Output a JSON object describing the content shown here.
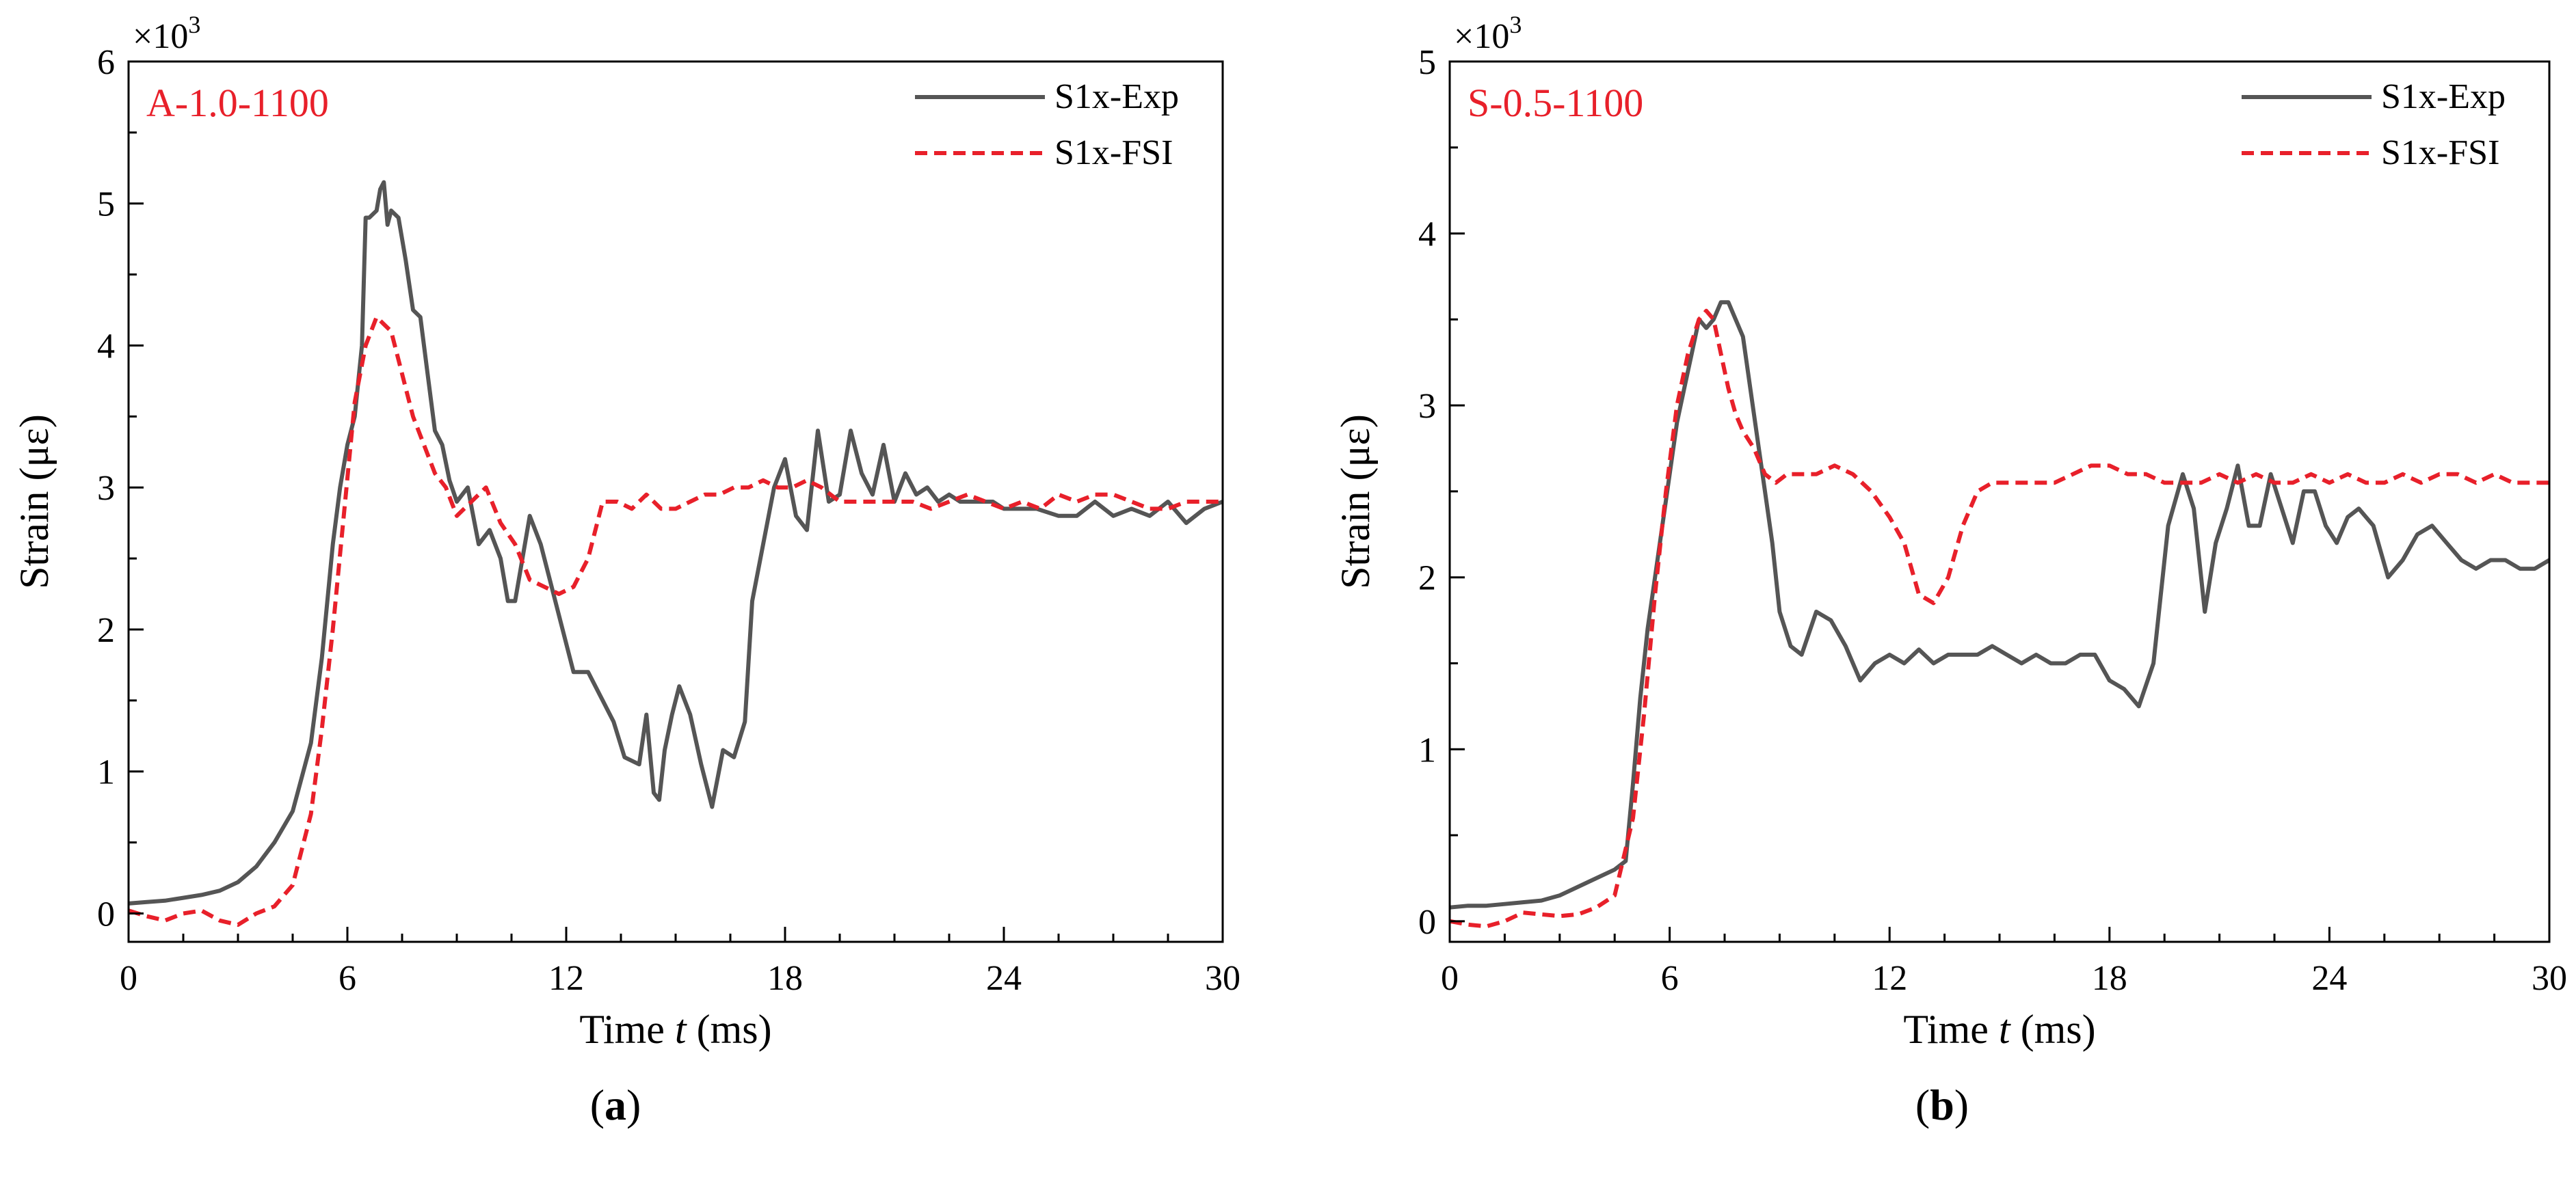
{
  "chart_data": [
    {
      "type": "line",
      "panel_label": "a",
      "annotation": "A-1.0-1100",
      "annotation_color": "#e8202a",
      "xlabel_prefix": "Time ",
      "xlabel_var": "t",
      "xlabel_suffix": " (ms)",
      "ylabel": "Strain (με)",
      "y_multiplier": "×10",
      "y_multiplier_exp": "3",
      "xlim": [
        0,
        30
      ],
      "ylim": [
        -0.2,
        6
      ],
      "xticks": [
        0,
        6,
        12,
        18,
        24,
        30
      ],
      "xtick_labels": [
        "0",
        "6",
        "12",
        "18",
        "24",
        "30"
      ],
      "yticks": [
        0,
        1,
        2,
        3,
        4,
        5,
        6
      ],
      "ytick_labels": [
        "0",
        "1",
        "2",
        "3",
        "4",
        "5",
        "6"
      ],
      "legend_position": "top-right",
      "series": [
        {
          "name": "S1x-Exp",
          "color": "#555555",
          "dash": "solid",
          "x": [
            0,
            0.5,
            1,
            1.5,
            2,
            2.5,
            3,
            3.5,
            4,
            4.5,
            5,
            5.3,
            5.6,
            5.8,
            6,
            6.2,
            6.4,
            6.5,
            6.6,
            6.8,
            6.9,
            7,
            7.1,
            7.2,
            7.4,
            7.6,
            7.8,
            8,
            8.2,
            8.4,
            8.6,
            8.8,
            9,
            9.3,
            9.6,
            9.9,
            10.2,
            10.4,
            10.6,
            11,
            11.3,
            11.6,
            11.9,
            12.2,
            12.6,
            13,
            13.3,
            13.6,
            14,
            14.2,
            14.4,
            14.55,
            14.7,
            14.9,
            15.1,
            15.4,
            15.7,
            16,
            16.3,
            16.6,
            16.9,
            17.1,
            17.4,
            17.7,
            18,
            18.3,
            18.6,
            18.9,
            19.2,
            19.5,
            19.8,
            20.1,
            20.4,
            20.7,
            21,
            21.3,
            21.6,
            21.9,
            22.2,
            22.5,
            22.8,
            23.1,
            23.4,
            23.7,
            24,
            24.3,
            24.6,
            24.9,
            25.5,
            26,
            26.5,
            27,
            27.5,
            28,
            28.5,
            29,
            29.5,
            30
          ],
          "y": [
            0.07,
            0.08,
            0.09,
            0.11,
            0.13,
            0.16,
            0.22,
            0.33,
            0.5,
            0.72,
            1.2,
            1.8,
            2.6,
            3.0,
            3.3,
            3.5,
            4.0,
            4.9,
            4.9,
            4.95,
            5.1,
            5.15,
            4.85,
            4.95,
            4.9,
            4.6,
            4.25,
            4.2,
            3.8,
            3.4,
            3.3,
            3.05,
            2.9,
            3.0,
            2.6,
            2.7,
            2.5,
            2.2,
            2.2,
            2.8,
            2.6,
            2.3,
            2.0,
            1.7,
            1.7,
            1.5,
            1.35,
            1.1,
            1.05,
            1.4,
            0.85,
            0.8,
            1.15,
            1.4,
            1.6,
            1.4,
            1.05,
            0.75,
            1.15,
            1.1,
            1.35,
            2.2,
            2.6,
            3.0,
            3.2,
            2.8,
            2.7,
            3.4,
            2.9,
            2.95,
            3.4,
            3.1,
            2.95,
            3.3,
            2.9,
            3.1,
            2.95,
            3.0,
            2.9,
            2.95,
            2.9,
            2.9,
            2.9,
            2.9,
            2.85,
            2.85,
            2.85,
            2.85,
            2.8,
            2.8,
            2.9,
            2.8,
            2.85,
            2.8,
            2.9,
            2.75,
            2.85,
            2.9
          ]
        },
        {
          "name": "S1x-FSI",
          "color": "#e8202a",
          "dash": "dashed",
          "x": [
            0,
            0.5,
            1,
            1.5,
            2,
            2.5,
            3,
            3.5,
            4,
            4.5,
            5,
            5.3,
            5.6,
            5.9,
            6.2,
            6.5,
            6.8,
            7,
            7.2,
            7.4,
            7.6,
            7.8,
            8.1,
            8.4,
            8.7,
            9,
            9.4,
            9.8,
            10.2,
            10.6,
            11,
            11.4,
            11.8,
            12.2,
            12.6,
            13,
            13.4,
            13.8,
            14.2,
            14.6,
            15,
            15.4,
            15.8,
            16.2,
            16.6,
            17,
            17.4,
            17.8,
            18.2,
            18.6,
            19,
            19.5,
            20,
            20.5,
            21,
            21.5,
            22,
            22.5,
            23,
            23.5,
            24,
            24.5,
            25,
            25.5,
            26,
            26.5,
            27,
            27.5,
            28,
            28.5,
            29,
            29.5,
            30
          ],
          "y": [
            0.02,
            -0.02,
            -0.05,
            0.0,
            0.02,
            -0.05,
            -0.08,
            0.0,
            0.05,
            0.2,
            0.7,
            1.3,
            2.0,
            2.8,
            3.6,
            4.0,
            4.2,
            4.15,
            4.1,
            3.9,
            3.7,
            3.5,
            3.3,
            3.1,
            3.0,
            2.8,
            2.9,
            3.0,
            2.75,
            2.6,
            2.35,
            2.3,
            2.25,
            2.3,
            2.5,
            2.9,
            2.9,
            2.85,
            2.95,
            2.85,
            2.85,
            2.9,
            2.95,
            2.95,
            3.0,
            3.0,
            3.05,
            3.0,
            3.0,
            3.05,
            3.0,
            2.9,
            2.9,
            2.9,
            2.9,
            2.9,
            2.85,
            2.9,
            2.95,
            2.9,
            2.85,
            2.9,
            2.85,
            2.95,
            2.9,
            2.95,
            2.95,
            2.9,
            2.85,
            2.85,
            2.9,
            2.9,
            2.9
          ]
        }
      ]
    },
    {
      "type": "line",
      "panel_label": "b",
      "annotation": "S-0.5-1100",
      "annotation_color": "#e8202a",
      "xlabel_prefix": "Time ",
      "xlabel_var": "t",
      "xlabel_suffix": " (ms)",
      "ylabel": "Strain (με)",
      "y_multiplier": "×10",
      "y_multiplier_exp": "3",
      "xlim": [
        0,
        30
      ],
      "ylim": [
        -0.12,
        5
      ],
      "xticks": [
        0,
        6,
        12,
        18,
        24,
        30
      ],
      "xtick_labels": [
        "0",
        "6",
        "12",
        "18",
        "24",
        "30"
      ],
      "yticks": [
        0,
        1,
        2,
        3,
        4,
        5
      ],
      "ytick_labels": [
        "0",
        "1",
        "2",
        "3",
        "4",
        "5"
      ],
      "legend_position": "top-right",
      "series": [
        {
          "name": "S1x-Exp",
          "color": "#555555",
          "dash": "solid",
          "x": [
            0,
            0.5,
            1,
            1.5,
            2,
            2.5,
            3,
            3.5,
            4,
            4.5,
            4.8,
            5,
            5.2,
            5.4,
            5.6,
            5.8,
            6,
            6.2,
            6.4,
            6.6,
            6.8,
            7,
            7.2,
            7.4,
            7.6,
            7.8,
            8,
            8.2,
            8.4,
            8.6,
            8.8,
            9,
            9.3,
            9.6,
            10,
            10.4,
            10.8,
            11.2,
            11.6,
            12,
            12.4,
            12.8,
            13.2,
            13.6,
            14,
            14.4,
            14.8,
            15.2,
            15.6,
            16,
            16.4,
            16.8,
            17.2,
            17.6,
            18,
            18.4,
            18.8,
            19.2,
            19.6,
            20,
            20.3,
            20.6,
            20.9,
            21.2,
            21.5,
            21.8,
            22.1,
            22.4,
            22.7,
            23,
            23.3,
            23.6,
            23.9,
            24.2,
            24.5,
            24.8,
            25.2,
            25.6,
            26,
            26.4,
            26.8,
            27.2,
            27.6,
            28,
            28.4,
            28.8,
            29.2,
            29.6,
            30
          ],
          "y": [
            0.08,
            0.09,
            0.09,
            0.1,
            0.11,
            0.12,
            0.15,
            0.2,
            0.25,
            0.3,
            0.35,
            0.8,
            1.3,
            1.7,
            2.0,
            2.3,
            2.6,
            2.9,
            3.1,
            3.3,
            3.5,
            3.45,
            3.5,
            3.6,
            3.6,
            3.5,
            3.4,
            3.1,
            2.8,
            2.5,
            2.2,
            1.8,
            1.6,
            1.55,
            1.8,
            1.75,
            1.6,
            1.4,
            1.5,
            1.55,
            1.5,
            1.58,
            1.5,
            1.55,
            1.55,
            1.55,
            1.6,
            1.55,
            1.5,
            1.55,
            1.5,
            1.5,
            1.55,
            1.55,
            1.4,
            1.35,
            1.25,
            1.5,
            2.3,
            2.6,
            2.4,
            1.8,
            2.2,
            2.4,
            2.65,
            2.3,
            2.3,
            2.6,
            2.4,
            2.2,
            2.5,
            2.5,
            2.3,
            2.2,
            2.35,
            2.4,
            2.3,
            2.0,
            2.1,
            2.25,
            2.3,
            2.2,
            2.1,
            2.05,
            2.1,
            2.1,
            2.05,
            2.05,
            2.1
          ]
        },
        {
          "name": "S1x-FSI",
          "color": "#e8202a",
          "dash": "dashed",
          "x": [
            0,
            0.5,
            1,
            1.5,
            2,
            2.5,
            3,
            3.5,
            4,
            4.5,
            5,
            5.3,
            5.6,
            5.9,
            6.2,
            6.5,
            6.8,
            7,
            7.2,
            7.4,
            7.6,
            7.8,
            8,
            8.3,
            8.6,
            8.9,
            9.2,
            9.6,
            10,
            10.5,
            11,
            11.5,
            12,
            12.4,
            12.8,
            13.2,
            13.6,
            14,
            14.4,
            14.8,
            15.2,
            15.6,
            16,
            16.5,
            17,
            17.5,
            18,
            18.5,
            19,
            19.5,
            20,
            20.5,
            21,
            21.5,
            22,
            22.5,
            23,
            23.5,
            24,
            24.5,
            25,
            25.5,
            26,
            26.5,
            27,
            27.5,
            28,
            28.5,
            29,
            29.5,
            30
          ],
          "y": [
            0.0,
            -0.02,
            -0.03,
            0.0,
            0.05,
            0.04,
            0.03,
            0.04,
            0.08,
            0.15,
            0.6,
            1.2,
            1.9,
            2.5,
            3.0,
            3.3,
            3.5,
            3.55,
            3.5,
            3.3,
            3.1,
            2.95,
            2.85,
            2.75,
            2.6,
            2.55,
            2.6,
            2.6,
            2.6,
            2.65,
            2.6,
            2.5,
            2.35,
            2.2,
            1.9,
            1.85,
            2.0,
            2.3,
            2.5,
            2.55,
            2.55,
            2.55,
            2.55,
            2.55,
            2.6,
            2.65,
            2.65,
            2.6,
            2.6,
            2.55,
            2.55,
            2.55,
            2.6,
            2.55,
            2.6,
            2.55,
            2.55,
            2.6,
            2.55,
            2.6,
            2.55,
            2.55,
            2.6,
            2.55,
            2.6,
            2.6,
            2.55,
            2.6,
            2.55,
            2.55,
            2.55
          ]
        }
      ]
    }
  ]
}
